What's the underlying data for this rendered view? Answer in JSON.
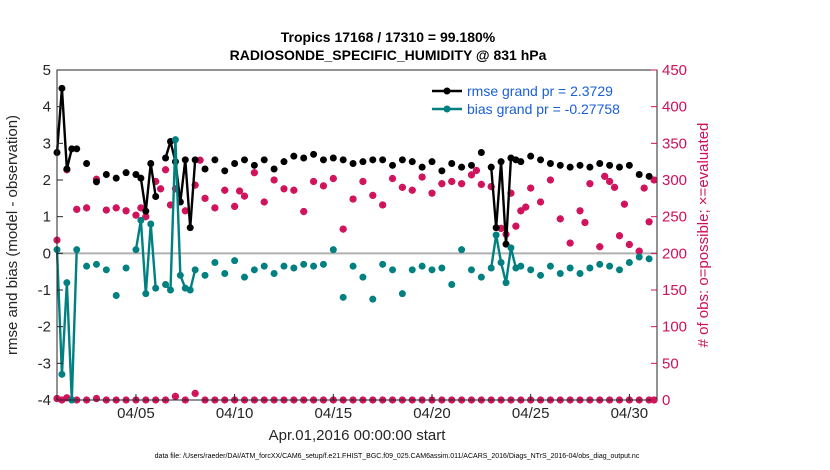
{
  "title_line1": "Tropics 17168 / 17310 = 99.180%",
  "title_line2": "RADIOSONDE_SPECIFIC_HUMIDITY @ 831 hPa",
  "footer": "data file: /Users/raeder/DAI/ATM_forcXX/CAM6_setup/f.e21.FHIST_BGC.f09_025.CAM6assim.011/ACARS_2016/Diags_NTrS_2016-04/obs_diag_output.nc",
  "colors": {
    "rmse": "#000000",
    "bias": "#008080",
    "obs": "#d0105a",
    "zero": "#b0b0b0",
    "legend_text": "#1a5fd6"
  },
  "chart_data": {
    "type": "line",
    "title": "Tropics 17168 / 17310 = 99.180% — RADIOSONDE_SPECIFIC_HUMIDITY @ 831 hPa",
    "xlabel": "Apr.01,2016 00:00:00 start",
    "ylabel": "rmse and bias (model - observation)",
    "y2label": "# of obs: o=possible; ×=evaluated",
    "xlim": [
      1,
      31.4
    ],
    "ylim": [
      -4,
      5
    ],
    "y2lim": [
      0,
      450
    ],
    "x_ticks": [
      5,
      10,
      15,
      20,
      25,
      30
    ],
    "x_tick_labels": [
      "04/05",
      "04/10",
      "04/15",
      "04/20",
      "04/25",
      "04/30"
    ],
    "y_ticks": [
      -4,
      -3,
      -2,
      -1,
      0,
      1,
      2,
      3,
      4,
      5
    ],
    "y2_ticks": [
      0,
      50,
      100,
      150,
      200,
      250,
      300,
      350,
      400,
      450
    ],
    "x": [
      1.0,
      1.25,
      1.5,
      1.75,
      2.0,
      2.5,
      3.0,
      3.5,
      4.0,
      4.5,
      5.0,
      5.25,
      5.5,
      5.75,
      6.0,
      6.5,
      6.75,
      7.0,
      7.25,
      7.5,
      7.75,
      8.0,
      8.5,
      9.0,
      9.5,
      10.0,
      10.5,
      11.0,
      11.5,
      12.0,
      12.5,
      13.0,
      13.5,
      14.0,
      14.5,
      15.0,
      15.5,
      16.0,
      16.5,
      17.0,
      17.5,
      18.0,
      18.5,
      19.0,
      19.5,
      20.0,
      20.5,
      21.0,
      21.5,
      22.0,
      22.5,
      23.0,
      23.25,
      23.5,
      23.75,
      24.0,
      24.25,
      24.5,
      25.0,
      25.5,
      26.0,
      26.5,
      27.0,
      27.5,
      28.0,
      28.5,
      29.0,
      29.5,
      30.0,
      30.5,
      31.0
    ],
    "series": [
      {
        "name": "rmse grand pr = 2.3729",
        "values": [
          2.75,
          4.5,
          2.3,
          2.85,
          2.85,
          2.45,
          1.95,
          2.15,
          2.05,
          2.2,
          2.15,
          2.05,
          1.15,
          2.45,
          1.55,
          2.6,
          3.05,
          2.5,
          1.4,
          2.55,
          0.7,
          2.55,
          2.3,
          2.55,
          2.25,
          2.45,
          2.55,
          2.4,
          2.55,
          2.3,
          2.5,
          2.65,
          2.6,
          2.7,
          2.55,
          2.6,
          2.55,
          2.45,
          2.5,
          2.55,
          2.55,
          2.4,
          2.55,
          2.5,
          2.35,
          2.5,
          2.25,
          2.45,
          2.35,
          2.4,
          2.75,
          2.35,
          0.7,
          2.5,
          0.25,
          2.6,
          2.55,
          2.5,
          2.65,
          2.55,
          2.45,
          2.4,
          2.35,
          2.4,
          2.35,
          2.45,
          2.4,
          2.35,
          2.4,
          2.15,
          2.1
        ]
      },
      {
        "name": "bias grand pr = -0.27758",
        "values": [
          0.1,
          -3.3,
          -0.8,
          -4.0,
          0.1,
          -0.35,
          -0.3,
          -0.45,
          -1.15,
          -0.4,
          0.1,
          0.9,
          -1.1,
          0.8,
          -0.95,
          -0.85,
          -1.0,
          3.1,
          -0.6,
          -0.95,
          -1.0,
          -0.45,
          -0.6,
          -0.25,
          -0.55,
          -0.2,
          -0.65,
          -0.45,
          -0.35,
          -0.55,
          -0.35,
          -0.4,
          -0.3,
          -0.35,
          -0.3,
          0.1,
          -1.2,
          -0.35,
          -0.65,
          -1.25,
          -0.3,
          -0.45,
          -1.1,
          -0.45,
          -0.35,
          -0.45,
          -0.4,
          -0.85,
          0.1,
          -0.45,
          -0.65,
          -0.4,
          0.5,
          -0.25,
          -0.8,
          0.15,
          -0.4,
          -0.35,
          -0.45,
          -0.6,
          -0.35,
          -0.55,
          -0.4,
          -0.55,
          -0.4,
          -0.3,
          -0.35,
          -0.45,
          -0.25,
          -0.1,
          -0.15
        ]
      }
    ],
    "obs_evaluated": [
      218,
      314,
      260,
      262,
      301,
      259,
      262,
      258,
      252,
      262,
      250,
      298,
      288,
      314,
      266,
      288,
      258,
      293,
      327,
      275,
      262,
      286,
      264,
      285,
      278,
      310,
      270,
      300,
      288,
      286,
      257,
      298,
      292,
      302,
      233,
      274,
      298,
      279,
      266,
      302,
      290,
      286,
      304,
      282,
      295,
      298,
      295,
      307,
      313,
      294,
      291,
      234,
      226,
      282,
      237,
      258,
      263,
      289,
      270,
      300,
      247,
      214,
      258,
      295,
      209,
      298,
      224,
      212,
      203,
      243,
      300,
      289,
      267,
      290,
      305,
      242
    ],
    "obs_evaluated_x": [
      1.0,
      1.5,
      2.0,
      2.5,
      3.0,
      3.5,
      4.0,
      4.5,
      5.0,
      5.25,
      5.5,
      6.0,
      6.25,
      6.5,
      6.75,
      7.0,
      7.5,
      8.0,
      8.25,
      8.5,
      9.0,
      9.5,
      10.0,
      10.25,
      10.5,
      11.0,
      11.5,
      12.0,
      12.5,
      13.0,
      13.5,
      14.0,
      14.5,
      15.0,
      15.5,
      16.0,
      16.5,
      17.0,
      17.5,
      18.0,
      18.5,
      19.0,
      19.5,
      20.0,
      20.5,
      21.0,
      21.5,
      22.0,
      22.25,
      22.5,
      23.0,
      23.5,
      23.75,
      24.0,
      24.25,
      24.5,
      24.75,
      25.0,
      25.5,
      26.0,
      26.5,
      27.0,
      27.5,
      28.0,
      28.5,
      29.0,
      29.5,
      30.0,
      30.5,
      31.0,
      31.25,
      30.75,
      29.75,
      29.25,
      28.75,
      27.75
    ],
    "obs_zero_x": [
      1.0,
      1.25,
      1.5,
      2.0,
      2.5,
      3.0,
      3.5,
      4.0,
      4.5,
      5.0,
      5.5,
      6.0,
      6.5,
      7.0,
      7.5,
      8.0,
      8.5,
      9.0,
      9.5,
      10.0,
      10.5,
      11.0,
      11.5,
      12.0,
      12.5,
      13.0,
      13.5,
      14.0,
      14.5,
      15.0,
      15.5,
      16.0,
      16.5,
      17.0,
      17.5,
      18.0,
      18.5,
      19.0,
      19.5,
      20.0,
      20.5,
      21.0,
      21.5,
      22.0,
      22.5,
      23.0,
      23.5,
      24.0,
      24.5,
      25.0,
      25.5,
      26.0,
      26.5,
      27.0,
      27.5,
      28.0,
      28.5,
      29.0,
      29.5,
      30.0,
      30.5,
      31.0,
      31.25
    ],
    "obs_zero_y": [
      2,
      0,
      3,
      0,
      0,
      2,
      0,
      0,
      0,
      0,
      0,
      0,
      0,
      5,
      0,
      9,
      0,
      0,
      0,
      0,
      0,
      0,
      0,
      0,
      0,
      0,
      0,
      0,
      0,
      0,
      0,
      0,
      0,
      0,
      0,
      0,
      0,
      0,
      0,
      0,
      0,
      0,
      0,
      0,
      0,
      0,
      0,
      0,
      0,
      0,
      0,
      0,
      0,
      0,
      0,
      0,
      0,
      0,
      0,
      0,
      0,
      0,
      0
    ]
  }
}
